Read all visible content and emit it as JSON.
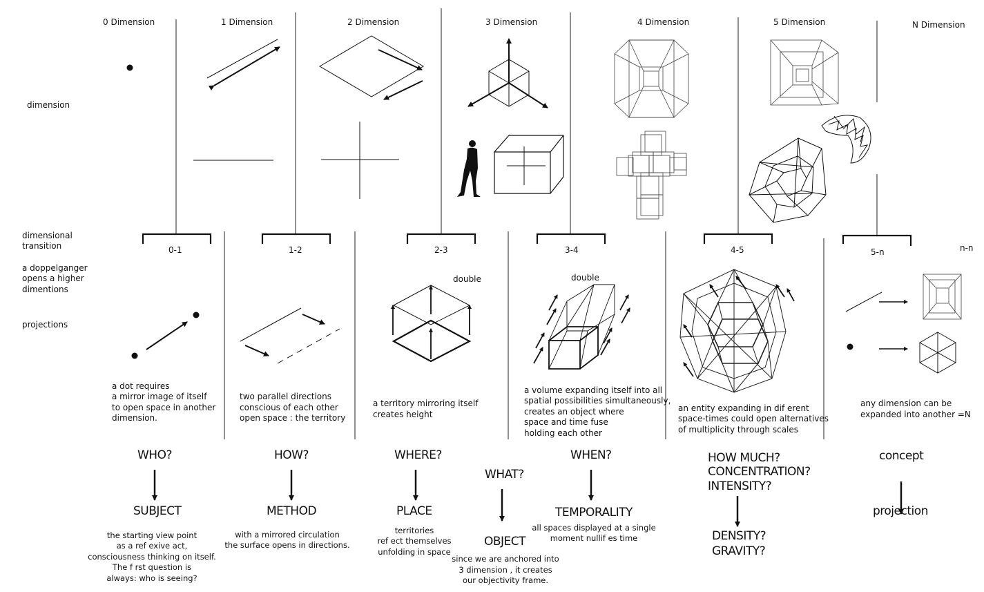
{
  "dimensions": [
    {
      "label": "0 Dimension"
    },
    {
      "label": "1 Dimension"
    },
    {
      "label": "2 Dimension"
    },
    {
      "label": "3 Dimension"
    },
    {
      "label": "4 Dimension"
    },
    {
      "label": "5  Dimension"
    },
    {
      "label": "N Dimension"
    }
  ],
  "row_labels": {
    "dimension": "dimension",
    "dimensional_transition": [
      "dimensional",
      "transition"
    ],
    "doppelganger": [
      "a doppelganger",
      "opens a higher",
      "dimentions"
    ],
    "projections": "projections"
  },
  "transitions": [
    {
      "label": "0-1",
      "note": "",
      "caption": [
        "a dot requires",
        "a mirror image of itself",
        "to open space in another",
        "dimension."
      ]
    },
    {
      "label": "1-2",
      "note": "",
      "caption": [
        "two parallel directions",
        "conscious of each other",
        "open space : the territory"
      ]
    },
    {
      "label": "2-3",
      "note": "double",
      "caption": [
        "a territory mirroring itself",
        "creates height"
      ]
    },
    {
      "label": "3-4",
      "note": "double",
      "caption": [
        "a volume expanding itself into all",
        "spatial possibilities simultaneously,",
        "creates an object where",
        "space and time fuse",
        "holding each other"
      ]
    },
    {
      "label": "4-5",
      "note": "",
      "caption": [
        "an entity expanding in dif erent",
        "space-times could open alternatives",
        "of multiplicity through scales"
      ]
    },
    {
      "label": "5-n",
      "note": "",
      "caption": [
        "any dimension can be",
        "expanded into another =N"
      ]
    },
    {
      "label": "n-n",
      "note": "",
      "caption": []
    }
  ],
  "questions": [
    {
      "q": [
        "WHO?"
      ],
      "answer": [
        "SUBJECT"
      ],
      "desc": [
        "the starting view point",
        "as a ref exive act,",
        "consciousness thinking on itself.",
        "The f rst question is",
        "always: who is seeing?"
      ]
    },
    {
      "q": [
        "HOW?"
      ],
      "answer": [
        "METHOD"
      ],
      "desc": [
        "with a mirrored circulation",
        "the surface opens in directions."
      ]
    },
    {
      "q": [
        "WHERE?"
      ],
      "answer": [
        "PLACE"
      ],
      "desc": [
        "territories",
        "ref ect themselves",
        "unfolding in space"
      ]
    },
    {
      "q": [
        "WHAT?"
      ],
      "answer": [
        "OBJECT"
      ],
      "desc": [
        "since we are anchored into",
        "3 dimension , it creates",
        "our objectivity frame."
      ]
    },
    {
      "q": [
        "WHEN?"
      ],
      "answer": [
        "TEMPORALITY"
      ],
      "desc": [
        "all spaces displayed at a single",
        "moment nullif es time"
      ]
    },
    {
      "q": [
        "HOW MUCH?",
        "CONCENTRATION?",
        "INTENSITY?"
      ],
      "answer": [
        "DENSITY?",
        "GRAVITY?"
      ],
      "desc": []
    },
    {
      "q": [
        "concept"
      ],
      "answer": [
        "projection"
      ],
      "desc": []
    }
  ]
}
